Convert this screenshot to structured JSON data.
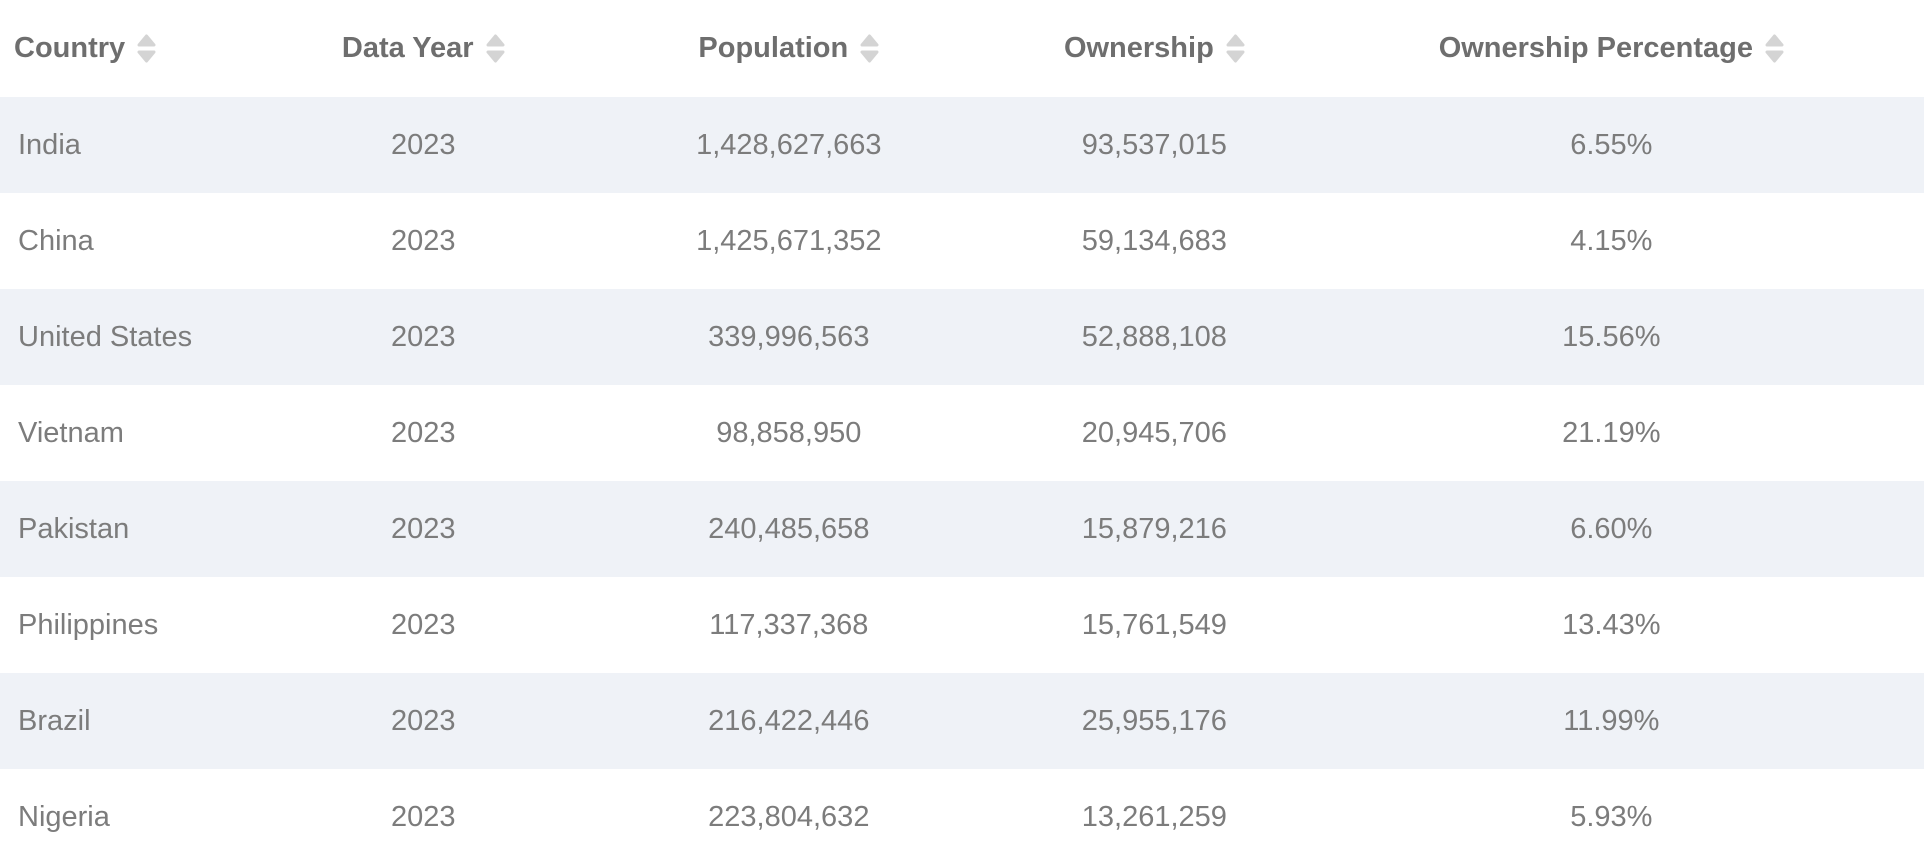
{
  "table": {
    "columns": [
      {
        "key": "country",
        "label": "Country"
      },
      {
        "key": "data_year",
        "label": "Data Year"
      },
      {
        "key": "population",
        "label": "Population"
      },
      {
        "key": "ownership",
        "label": "Ownership"
      },
      {
        "key": "ownership_percentage",
        "label": "Ownership Percentage"
      }
    ],
    "rows": [
      [
        "India",
        "2023",
        "1,428,627,663",
        "93,537,015",
        "6.55%"
      ],
      [
        "China",
        "2023",
        "1,425,671,352",
        "59,134,683",
        "4.15%"
      ],
      [
        "United States",
        "2023",
        "339,996,563",
        "52,888,108",
        "15.56%"
      ],
      [
        "Vietnam",
        "2023",
        "98,858,950",
        "20,945,706",
        "21.19%"
      ],
      [
        "Pakistan",
        "2023",
        "240,485,658",
        "15,879,216",
        "6.60%"
      ],
      [
        "Philippines",
        "2023",
        "117,337,368",
        "15,761,549",
        "13.43%"
      ],
      [
        "Brazil",
        "2023",
        "216,422,446",
        "25,955,176",
        "11.99%"
      ],
      [
        "Nigeria",
        "2023",
        "223,804,632",
        "13,261,259",
        "5.93%"
      ]
    ]
  },
  "icons": {
    "sort": "sort-asc-desc"
  },
  "colors": {
    "header_text": "#6e6e6e",
    "body_text": "#7c7c7c",
    "row_stripe": "#eff2f7",
    "row_alt": "#ffffff",
    "sort_icon": "#d4d4d4"
  }
}
